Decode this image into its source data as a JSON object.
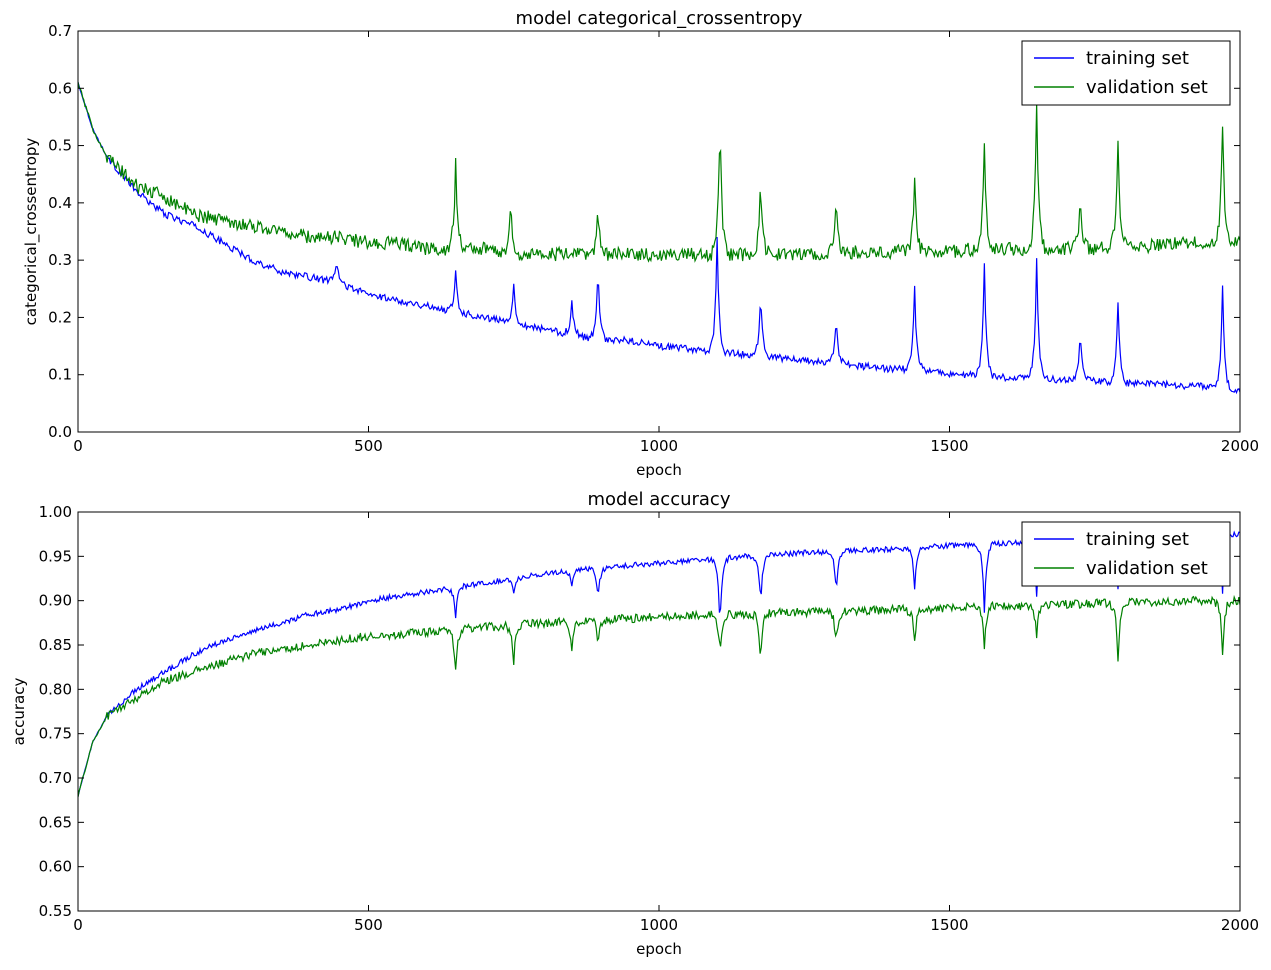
{
  "chart_data": [
    {
      "type": "line",
      "title": "model categorical_crossentropy",
      "xlabel": "epoch",
      "ylabel": "categorical_crossentropy",
      "xlim": [
        0,
        2000
      ],
      "ylim": [
        0.0,
        0.7
      ],
      "xticks": [
        0,
        500,
        1000,
        1500,
        2000
      ],
      "xtick_labels": [
        "0",
        "500",
        "1000",
        "1500",
        "2000"
      ],
      "yticks": [
        0.0,
        0.1,
        0.2,
        0.3,
        0.4,
        0.5,
        0.6,
        0.7
      ],
      "ytick_labels": [
        "0.0",
        "0.1",
        "0.2",
        "0.3",
        "0.4",
        "0.5",
        "0.6",
        "0.7"
      ],
      "grid": false,
      "legend_position": "upper right",
      "x": [
        0,
        25,
        50,
        100,
        150,
        200,
        250,
        300,
        350,
        400,
        450,
        500,
        550,
        600,
        650,
        700,
        750,
        800,
        850,
        900,
        950,
        1000,
        1050,
        1100,
        1150,
        1200,
        1250,
        1300,
        1350,
        1400,
        1450,
        1500,
        1550,
        1600,
        1650,
        1700,
        1750,
        1800,
        1850,
        1900,
        1950,
        2000
      ],
      "series": [
        {
          "name": "training set",
          "color": "#0000ff",
          "values": [
            0.61,
            0.53,
            0.48,
            0.42,
            0.38,
            0.36,
            0.33,
            0.3,
            0.28,
            0.27,
            0.26,
            0.24,
            0.23,
            0.22,
            0.21,
            0.2,
            0.19,
            0.18,
            0.17,
            0.16,
            0.16,
            0.15,
            0.145,
            0.14,
            0.135,
            0.13,
            0.125,
            0.12,
            0.115,
            0.11,
            0.11,
            0.1,
            0.1,
            0.095,
            0.095,
            0.09,
            0.09,
            0.085,
            0.085,
            0.08,
            0.08,
            0.07
          ]
        },
        {
          "name": "validation set",
          "color": "#008000",
          "values": [
            0.61,
            0.53,
            0.48,
            0.43,
            0.41,
            0.38,
            0.37,
            0.36,
            0.35,
            0.34,
            0.34,
            0.33,
            0.33,
            0.32,
            0.32,
            0.32,
            0.31,
            0.31,
            0.31,
            0.31,
            0.31,
            0.31,
            0.31,
            0.31,
            0.31,
            0.31,
            0.31,
            0.31,
            0.315,
            0.315,
            0.315,
            0.315,
            0.32,
            0.32,
            0.32,
            0.32,
            0.32,
            0.325,
            0.325,
            0.33,
            0.33,
            0.33
          ]
        }
      ],
      "spikes": {
        "training set": [
          [
            445,
            0.3
          ],
          [
            650,
            0.28
          ],
          [
            750,
            0.26
          ],
          [
            850,
            0.23
          ],
          [
            895,
            0.29
          ],
          [
            1100,
            0.34
          ],
          [
            1175,
            0.24
          ],
          [
            1305,
            0.2
          ],
          [
            1440,
            0.25
          ],
          [
            1560,
            0.29
          ],
          [
            1650,
            0.3
          ],
          [
            1725,
            0.17
          ],
          [
            1790,
            0.23
          ],
          [
            1970,
            0.25
          ]
        ],
        "validation set": [
          [
            650,
            0.47
          ],
          [
            745,
            0.4
          ],
          [
            895,
            0.39
          ],
          [
            1105,
            0.54
          ],
          [
            1175,
            0.44
          ],
          [
            1305,
            0.41
          ],
          [
            1440,
            0.45
          ],
          [
            1560,
            0.5
          ],
          [
            1650,
            0.57
          ],
          [
            1725,
            0.41
          ],
          [
            1790,
            0.5
          ],
          [
            1970,
            0.54
          ]
        ]
      }
    },
    {
      "type": "line",
      "title": "model accuracy",
      "xlabel": "epoch",
      "ylabel": "accuracy",
      "xlim": [
        0,
        2000
      ],
      "ylim": [
        0.55,
        1.0
      ],
      "xticks": [
        0,
        500,
        1000,
        1500,
        2000
      ],
      "xtick_labels": [
        "0",
        "500",
        "1000",
        "1500",
        "2000"
      ],
      "yticks": [
        0.55,
        0.6,
        0.65,
        0.7,
        0.75,
        0.8,
        0.85,
        0.9,
        0.95,
        1.0
      ],
      "ytick_labels": [
        "0.55",
        "0.60",
        "0.65",
        "0.70",
        "0.75",
        "0.80",
        "0.85",
        "0.90",
        "0.95",
        "1.00"
      ],
      "grid": false,
      "legend_position": "upper right",
      "x": [
        0,
        25,
        50,
        100,
        150,
        200,
        250,
        300,
        350,
        400,
        450,
        500,
        550,
        600,
        650,
        700,
        750,
        800,
        850,
        900,
        950,
        1000,
        1050,
        1100,
        1150,
        1200,
        1250,
        1300,
        1350,
        1400,
        1450,
        1500,
        1550,
        1600,
        1650,
        1700,
        1750,
        1800,
        1850,
        1900,
        1950,
        2000
      ],
      "series": [
        {
          "name": "training set",
          "color": "#0000ff",
          "values": [
            0.68,
            0.74,
            0.77,
            0.8,
            0.82,
            0.84,
            0.855,
            0.865,
            0.875,
            0.885,
            0.89,
            0.9,
            0.905,
            0.91,
            0.915,
            0.92,
            0.925,
            0.93,
            0.935,
            0.937,
            0.94,
            0.942,
            0.945,
            0.947,
            0.95,
            0.952,
            0.954,
            0.955,
            0.957,
            0.958,
            0.96,
            0.962,
            0.963,
            0.965,
            0.966,
            0.967,
            0.968,
            0.97,
            0.971,
            0.972,
            0.974,
            0.975
          ]
        },
        {
          "name": "validation set",
          "color": "#008000",
          "values": [
            0.68,
            0.74,
            0.77,
            0.79,
            0.81,
            0.82,
            0.83,
            0.84,
            0.845,
            0.85,
            0.855,
            0.86,
            0.862,
            0.865,
            0.867,
            0.87,
            0.872,
            0.875,
            0.877,
            0.879,
            0.88,
            0.882,
            0.883,
            0.884,
            0.885,
            0.886,
            0.887,
            0.888,
            0.889,
            0.89,
            0.89,
            0.892,
            0.893,
            0.894,
            0.895,
            0.896,
            0.897,
            0.898,
            0.899,
            0.9,
            0.9,
            0.9
          ]
        }
      ],
      "spikes": {
        "training set": [
          [
            650,
            0.88
          ],
          [
            750,
            0.91
          ],
          [
            850,
            0.915
          ],
          [
            895,
            0.9
          ],
          [
            1105,
            0.87
          ],
          [
            1175,
            0.895
          ],
          [
            1305,
            0.91
          ],
          [
            1440,
            0.915
          ],
          [
            1560,
            0.885
          ],
          [
            1650,
            0.905
          ],
          [
            1790,
            0.91
          ],
          [
            1970,
            0.91
          ]
        ],
        "validation set": [
          [
            650,
            0.82
          ],
          [
            750,
            0.83
          ],
          [
            850,
            0.84
          ],
          [
            895,
            0.85
          ],
          [
            1105,
            0.84
          ],
          [
            1175,
            0.83
          ],
          [
            1305,
            0.85
          ],
          [
            1440,
            0.855
          ],
          [
            1560,
            0.845
          ],
          [
            1650,
            0.86
          ],
          [
            1790,
            0.83
          ],
          [
            1970,
            0.84
          ]
        ]
      }
    }
  ]
}
